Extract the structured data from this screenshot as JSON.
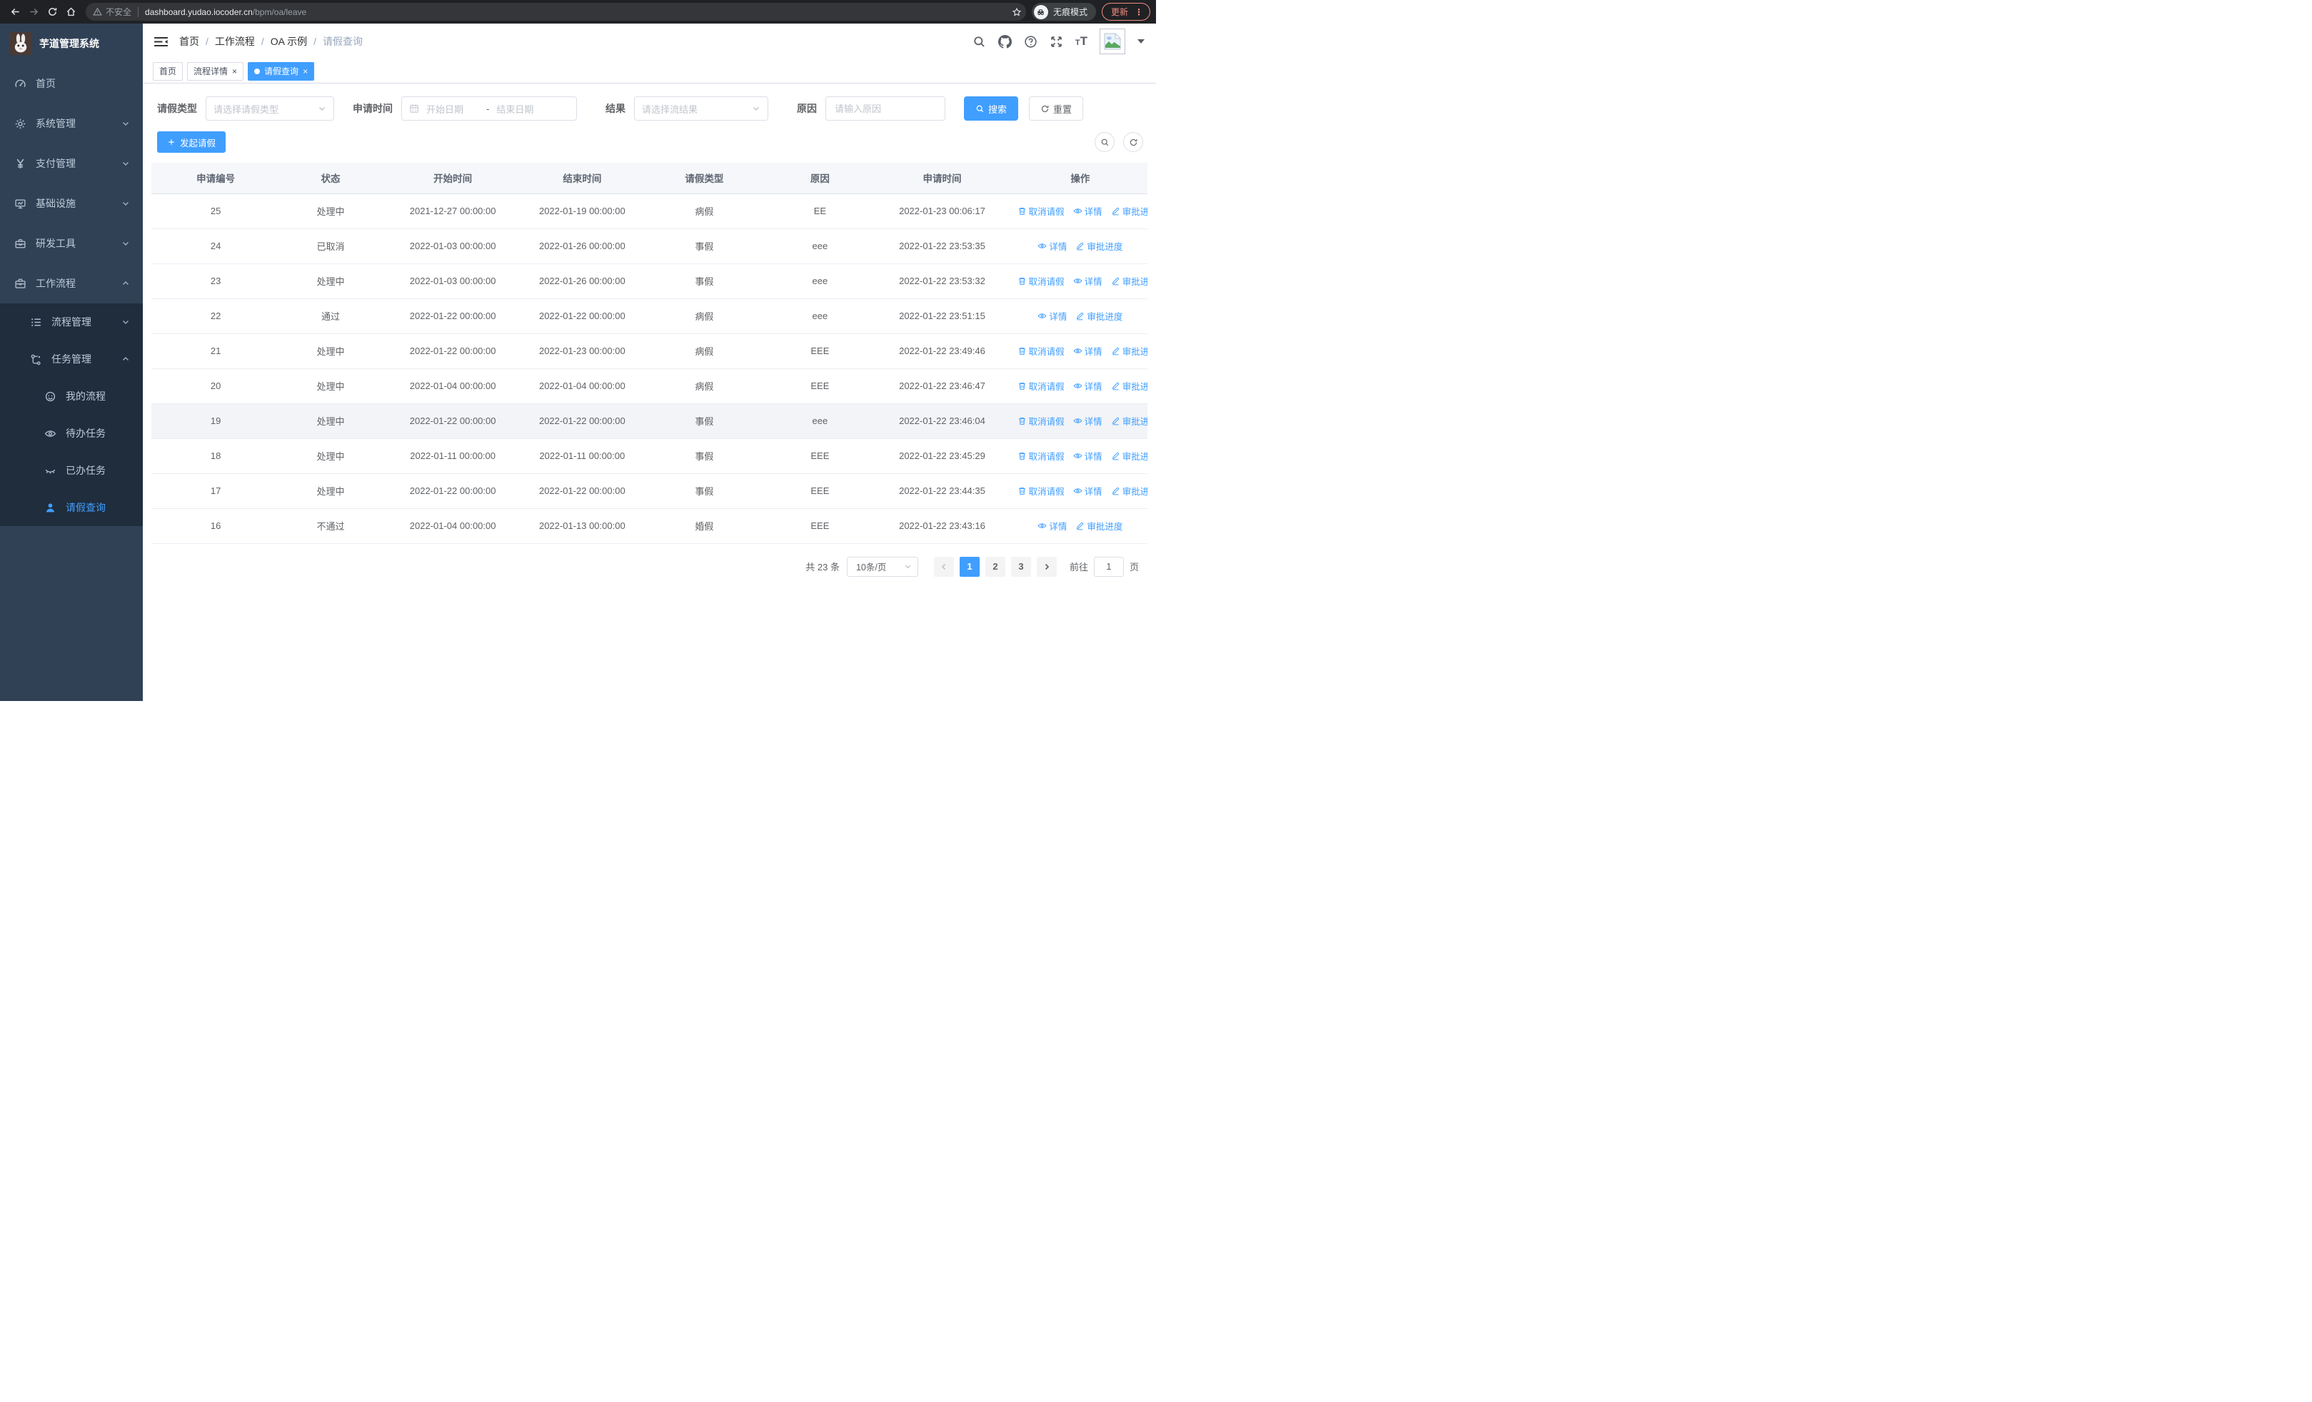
{
  "browser": {
    "security_label": "不安全",
    "url_host": "dashboard.yudao.iocoder.cn",
    "url_path": "/bpm/oa/leave",
    "incognito_label": "无痕模式",
    "update_label": "更新"
  },
  "sidebar": {
    "title": "芋道管理系统",
    "items": [
      {
        "key": "home",
        "label": "首页",
        "icon": "dashboard-icon",
        "level": 1
      },
      {
        "key": "system",
        "label": "系统管理",
        "icon": "gear-icon",
        "level": 1,
        "chevron": "down"
      },
      {
        "key": "payment",
        "label": "支付管理",
        "icon": "yen-icon",
        "level": 1,
        "chevron": "down"
      },
      {
        "key": "infra",
        "label": "基础设施",
        "icon": "monitor-icon",
        "level": 1,
        "chevron": "down"
      },
      {
        "key": "devtools",
        "label": "研发工具",
        "icon": "toolbox-icon",
        "level": 1,
        "chevron": "down"
      },
      {
        "key": "workflow",
        "label": "工作流程",
        "icon": "briefcase-icon",
        "level": 1,
        "chevron": "up"
      },
      {
        "key": "process-mgmt",
        "label": "流程管理",
        "icon": "list-icon",
        "level": 2,
        "chevron": "down",
        "in_submenu": true
      },
      {
        "key": "task-mgmt",
        "label": "任务管理",
        "icon": "flow-icon",
        "level": 2,
        "chevron": "up",
        "in_submenu": true
      },
      {
        "key": "my-process",
        "label": "我的流程",
        "icon": "face-icon",
        "level": 3,
        "in_submenu": true
      },
      {
        "key": "todo-task",
        "label": "待办任务",
        "icon": "eye-open-icon",
        "level": 3,
        "in_submenu": true
      },
      {
        "key": "done-task",
        "label": "已办任务",
        "icon": "eye-closed-icon",
        "level": 3,
        "in_submenu": true
      },
      {
        "key": "leave-query",
        "label": "请假查询",
        "icon": "user-icon",
        "level": 3,
        "in_submenu": true,
        "active": true
      }
    ]
  },
  "navbar": {
    "breadcrumb": [
      "首页",
      "工作流程",
      "OA 示例",
      "请假查询"
    ]
  },
  "tabs": [
    {
      "label": "首页",
      "closable": false,
      "active": false
    },
    {
      "label": "流程详情",
      "closable": true,
      "active": false
    },
    {
      "label": "请假查询",
      "closable": true,
      "active": true
    }
  ],
  "filters": {
    "leave_type_label": "请假类型",
    "leave_type_placeholder": "请选择请假类型",
    "apply_time_label": "申请时间",
    "date_start_placeholder": "开始日期",
    "date_separator": "-",
    "date_end_placeholder": "结束日期",
    "result_label": "结果",
    "result_placeholder": "请选择流结果",
    "reason_label": "原因",
    "reason_placeholder": "请输入原因",
    "search_label": "搜索",
    "reset_label": "重置"
  },
  "toolbar": {
    "create_label": "发起请假"
  },
  "table": {
    "columns": [
      "申请编号",
      "状态",
      "开始时间",
      "结束时间",
      "请假类型",
      "原因",
      "申请时间",
      "操作"
    ],
    "action_labels": {
      "cancel": "取消请假",
      "detail": "详情",
      "progress": "审批进度"
    },
    "rows": [
      {
        "id": "25",
        "status": "处理中",
        "start": "2021-12-27 00:00:00",
        "end": "2022-01-19 00:00:00",
        "type": "病假",
        "reason": "EE",
        "apply_time": "2022-01-23 00:06:17",
        "actions": [
          "cancel",
          "detail",
          "progress"
        ]
      },
      {
        "id": "24",
        "status": "已取消",
        "start": "2022-01-03 00:00:00",
        "end": "2022-01-26 00:00:00",
        "type": "事假",
        "reason": "eee",
        "apply_time": "2022-01-22 23:53:35",
        "actions": [
          "detail",
          "progress"
        ]
      },
      {
        "id": "23",
        "status": "处理中",
        "start": "2022-01-03 00:00:00",
        "end": "2022-01-26 00:00:00",
        "type": "事假",
        "reason": "eee",
        "apply_time": "2022-01-22 23:53:32",
        "actions": [
          "cancel",
          "detail",
          "progress"
        ]
      },
      {
        "id": "22",
        "status": "通过",
        "start": "2022-01-22 00:00:00",
        "end": "2022-01-22 00:00:00",
        "type": "病假",
        "reason": "eee",
        "apply_time": "2022-01-22 23:51:15",
        "actions": [
          "detail",
          "progress"
        ]
      },
      {
        "id": "21",
        "status": "处理中",
        "start": "2022-01-22 00:00:00",
        "end": "2022-01-23 00:00:00",
        "type": "病假",
        "reason": "EEE",
        "apply_time": "2022-01-22 23:49:46",
        "actions": [
          "cancel",
          "detail",
          "progress"
        ]
      },
      {
        "id": "20",
        "status": "处理中",
        "start": "2022-01-04 00:00:00",
        "end": "2022-01-04 00:00:00",
        "type": "病假",
        "reason": "EEE",
        "apply_time": "2022-01-22 23:46:47",
        "actions": [
          "cancel",
          "detail",
          "progress"
        ]
      },
      {
        "id": "19",
        "status": "处理中",
        "start": "2022-01-22 00:00:00",
        "end": "2022-01-22 00:00:00",
        "type": "事假",
        "reason": "eee",
        "apply_time": "2022-01-22 23:46:04",
        "actions": [
          "cancel",
          "detail",
          "progress"
        ],
        "highlight": true
      },
      {
        "id": "18",
        "status": "处理中",
        "start": "2022-01-11 00:00:00",
        "end": "2022-01-11 00:00:00",
        "type": "事假",
        "reason": "EEE",
        "apply_time": "2022-01-22 23:45:29",
        "actions": [
          "cancel",
          "detail",
          "progress"
        ]
      },
      {
        "id": "17",
        "status": "处理中",
        "start": "2022-01-22 00:00:00",
        "end": "2022-01-22 00:00:00",
        "type": "事假",
        "reason": "EEE",
        "apply_time": "2022-01-22 23:44:35",
        "actions": [
          "cancel",
          "detail",
          "progress"
        ]
      },
      {
        "id": "16",
        "status": "不通过",
        "start": "2022-01-04 00:00:00",
        "end": "2022-01-13 00:00:00",
        "type": "婚假",
        "reason": "EEE",
        "apply_time": "2022-01-22 23:43:16",
        "actions": [
          "detail",
          "progress"
        ]
      }
    ]
  },
  "pagination": {
    "total_label": "共 23 条",
    "page_size_label": "10条/页",
    "pages": [
      "1",
      "2",
      "3"
    ],
    "active_page": "1",
    "goto_label": "前往",
    "goto_value": "1",
    "goto_suffix": "页"
  },
  "colors": {
    "primary": "#409eff",
    "sidebar_bg": "#304156",
    "submenu_bg": "#1f2d3d",
    "menu_text": "#bfcbd9",
    "tab_active_bg": "#409eff",
    "update_accent": "#f28b82",
    "table_header_bg": "#f5f7fa"
  }
}
